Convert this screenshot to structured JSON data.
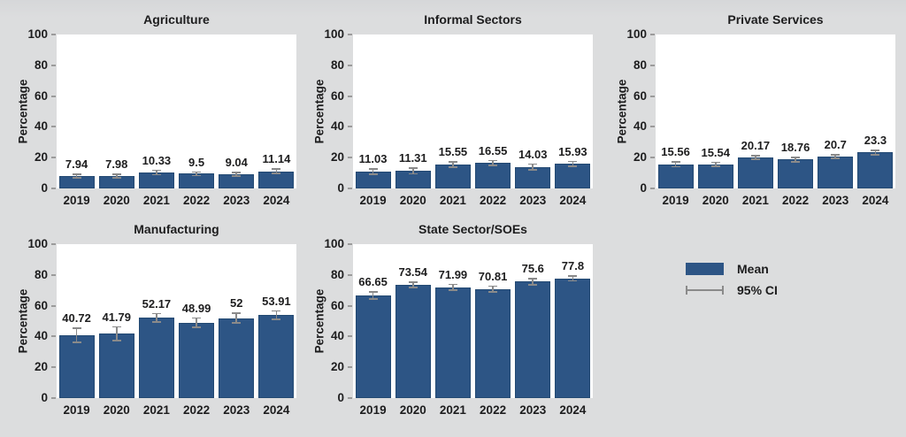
{
  "figure": {
    "background": "#dcddde",
    "text_color": "#1d1d1e"
  },
  "colors": {
    "bar_fill": "#2d5585",
    "bar_edge": "#234972",
    "error_bar": "#8a8a8a",
    "plot_background": "#ffffff",
    "tick_mark": "#9b9b9b"
  },
  "legend": {
    "mean_label": "Mean",
    "ci_label": "95% CI"
  },
  "axes": {
    "ylabel": "Percentage",
    "ylim": [
      0,
      100
    ],
    "yticks": [
      0,
      20,
      40,
      60,
      80,
      100
    ],
    "categories": [
      "2019",
      "2020",
      "2021",
      "2022",
      "2023",
      "2024"
    ]
  },
  "chart_data": [
    {
      "type": "bar",
      "title": "Agriculture",
      "ylabel": "Percentage",
      "ylim": [
        0,
        100
      ],
      "categories": [
        "2019",
        "2020",
        "2021",
        "2022",
        "2023",
        "2024"
      ],
      "values": [
        7.94,
        7.98,
        10.33,
        9.5,
        9.04,
        11.14
      ],
      "value_labels": [
        "7.94",
        "7.98",
        "10.33",
        "9.5",
        "9.04",
        "11.14"
      ],
      "ci_halfwidth_estimate": [
        1.6,
        1.6,
        1.9,
        1.7,
        1.6,
        2.0
      ],
      "error_bars": "95% CI"
    },
    {
      "type": "bar",
      "title": "Informal Sectors",
      "ylabel": "Percentage",
      "ylim": [
        0,
        100
      ],
      "categories": [
        "2019",
        "2020",
        "2021",
        "2022",
        "2023",
        "2024"
      ],
      "values": [
        11.03,
        11.31,
        15.55,
        16.55,
        14.03,
        15.93
      ],
      "value_labels": [
        "11.03",
        "11.31",
        "15.55",
        "16.55",
        "14.03",
        "15.93"
      ],
      "ci_halfwidth_estimate": [
        2.2,
        2.4,
        2.2,
        2.1,
        2.3,
        2.0
      ],
      "error_bars": "95% CI"
    },
    {
      "type": "bar",
      "title": "Private Services",
      "ylabel": "Percentage",
      "ylim": [
        0,
        100
      ],
      "categories": [
        "2019",
        "2020",
        "2021",
        "2022",
        "2023",
        "2024"
      ],
      "values": [
        15.56,
        15.54,
        20.17,
        18.76,
        20.7,
        23.3
      ],
      "value_labels": [
        "15.56",
        "15.54",
        "20.17",
        "18.76",
        "20.7",
        "23.3"
      ],
      "ci_halfwidth_estimate": [
        2.0,
        1.8,
        1.6,
        1.9,
        1.7,
        1.9
      ],
      "error_bars": "95% CI"
    },
    {
      "type": "bar",
      "title": "Manufacturing",
      "ylabel": "Percentage",
      "ylim": [
        0,
        100
      ],
      "categories": [
        "2019",
        "2020",
        "2021",
        "2022",
        "2023",
        "2024"
      ],
      "values": [
        40.72,
        41.79,
        52.17,
        48.99,
        52,
        53.91
      ],
      "value_labels": [
        "40.72",
        "41.79",
        "52.17",
        "48.99",
        "52",
        "53.91"
      ],
      "ci_halfwidth_estimate": [
        5.0,
        4.9,
        3.2,
        3.5,
        3.6,
        3.2
      ],
      "error_bars": "95% CI"
    },
    {
      "type": "bar",
      "title": "State Sector/SOEs",
      "ylabel": "Percentage",
      "ylim": [
        0,
        100
      ],
      "categories": [
        "2019",
        "2020",
        "2021",
        "2022",
        "2023",
        "2024"
      ],
      "values": [
        66.65,
        73.54,
        71.99,
        70.81,
        75.6,
        77.8
      ],
      "value_labels": [
        "66.65",
        "73.54",
        "71.99",
        "70.81",
        "75.6",
        "77.8"
      ],
      "ci_halfwidth_estimate": [
        2.8,
        2.2,
        2.4,
        2.3,
        2.4,
        2.1
      ],
      "error_bars": "95% CI"
    }
  ]
}
